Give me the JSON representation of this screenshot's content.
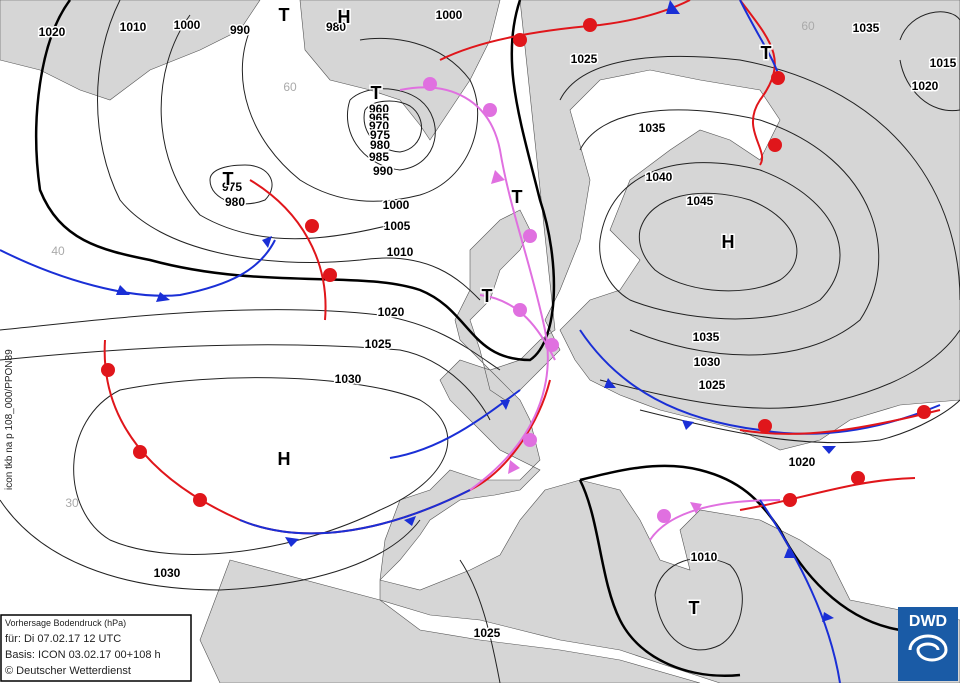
{
  "map": {
    "pressure_labels": [
      "1020",
      "1010",
      "1000",
      "990",
      "980",
      "1000",
      "960",
      "965",
      "970",
      "975",
      "980",
      "985",
      "990",
      "975",
      "980",
      "1000",
      "1005",
      "1010",
      "1020",
      "1025",
      "1030",
      "1030",
      "1025",
      "1035",
      "1040",
      "1045",
      "1035",
      "1030",
      "1025",
      "1020",
      "1010",
      "1025",
      "1035",
      "1015",
      "1020"
    ],
    "centers": [
      "T",
      "H",
      "T",
      "T",
      "T",
      "T",
      "H",
      "H",
      "T",
      "T"
    ],
    "latitude_labels": [
      "60",
      "40",
      "30",
      "60"
    ],
    "side_text": "icon tkb na p 108_000/PPON89",
    "info": {
      "title": "Vorhersage Bodendruck (hPa)",
      "valid": "für:  Di 07.02.17  12 UTC",
      "base": "Basis: ICON  03.02.17 00+108 h",
      "copyright": "© Deutscher Wetterdienst"
    },
    "logo": "DWD"
  }
}
